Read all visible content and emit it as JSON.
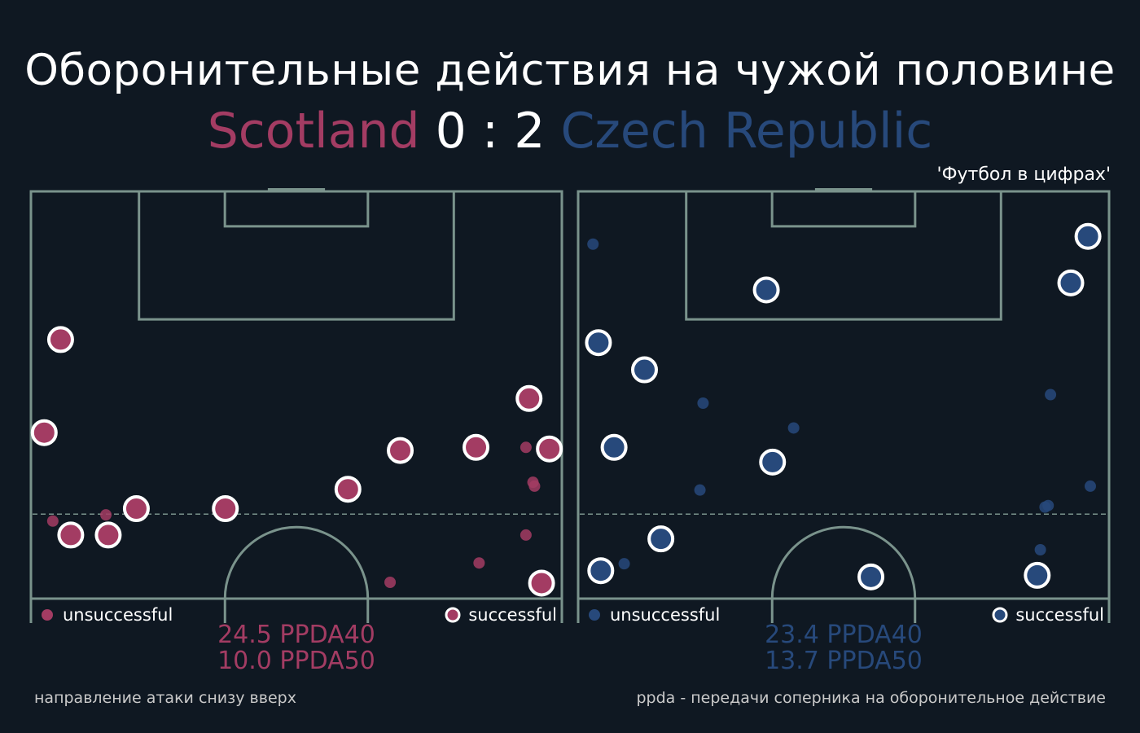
{
  "title": "Оборонительные действия на чужой половине",
  "match": {
    "home_team": "Scotland",
    "away_team": "Czech Republic",
    "score": "0 : 2"
  },
  "source": "'Футбол в цифрах'",
  "colors": {
    "background": "#0f1822",
    "pitch_lines": "#7a938c",
    "home": "#a33c63",
    "away": "#27497b",
    "success_edge": "#ffffff"
  },
  "footnotes": {
    "left": "направление атаки снизу вверх",
    "right": "ppda - передачи соперника на оборонительное действие"
  },
  "chart_data": [
    {
      "type": "scatter",
      "team": "Scotland",
      "pitch": "opponent half, attacking upward; x 0-68 width, y 52.5-105 length",
      "xlim": [
        0,
        68
      ],
      "ylim": [
        52.5,
        105
      ],
      "legend": {
        "unsuccessful": "unsuccessful",
        "successful": "successful"
      },
      "ppda40": "24.5 PPDA40",
      "ppda50": "10.0 PPDA50",
      "series": [
        {
          "name": "successful",
          "points": [
            [
              3.8,
              85.9
            ],
            [
              1.7,
              73.9
            ],
            [
              5.1,
              60.7
            ],
            [
              9.9,
              60.7
            ],
            [
              13.5,
              64.1
            ],
            [
              24.9,
              64.1
            ],
            [
              40.6,
              66.6
            ],
            [
              47.3,
              71.6
            ],
            [
              57.0,
              72.0
            ],
            [
              63.8,
              78.3
            ],
            [
              66.4,
              71.8
            ],
            [
              65.4,
              54.5
            ]
          ]
        },
        {
          "name": "unsuccessful",
          "points": [
            [
              2.8,
              62.5
            ],
            [
              9.6,
              63.3
            ],
            [
              23.9,
              63.9
            ],
            [
              46.0,
              54.6
            ],
            [
              57.4,
              57.1
            ],
            [
              63.4,
              60.7
            ],
            [
              63.4,
              72.0
            ],
            [
              64.3,
              67.5
            ],
            [
              64.5,
              67.0
            ]
          ]
        }
      ]
    },
    {
      "type": "scatter",
      "team": "Czech Republic",
      "pitch": "opponent half, attacking upward; x 0-68 width, y 52.5-105 length",
      "xlim": [
        0,
        68
      ],
      "ylim": [
        52.5,
        105
      ],
      "legend": {
        "unsuccessful": "unsuccessful",
        "successful": "successful"
      },
      "ppda40": "23.4 PPDA40",
      "ppda50": "13.7 PPDA50",
      "series": [
        {
          "name": "successful",
          "points": [
            [
              65.3,
              99.2
            ],
            [
              63.1,
              93.2
            ],
            [
              24.1,
              92.3
            ],
            [
              2.6,
              85.5
            ],
            [
              8.5,
              82.0
            ],
            [
              4.6,
              72.0
            ],
            [
              24.9,
              70.1
            ],
            [
              10.6,
              60.2
            ],
            [
              2.9,
              56.1
            ],
            [
              37.5,
              55.3
            ],
            [
              58.8,
              55.5
            ]
          ]
        },
        {
          "name": "unsuccessful",
          "points": [
            [
              1.9,
              98.2
            ],
            [
              16.0,
              77.7
            ],
            [
              27.6,
              74.5
            ],
            [
              15.6,
              66.5
            ],
            [
              60.5,
              78.8
            ],
            [
              65.6,
              67.0
            ],
            [
              60.2,
              64.5
            ],
            [
              59.8,
              64.3
            ],
            [
              59.2,
              58.8
            ],
            [
              5.9,
              57.0
            ]
          ]
        }
      ]
    }
  ],
  "legend_label_unsuccessful": "unsuccessful",
  "legend_label_successful": "successful"
}
